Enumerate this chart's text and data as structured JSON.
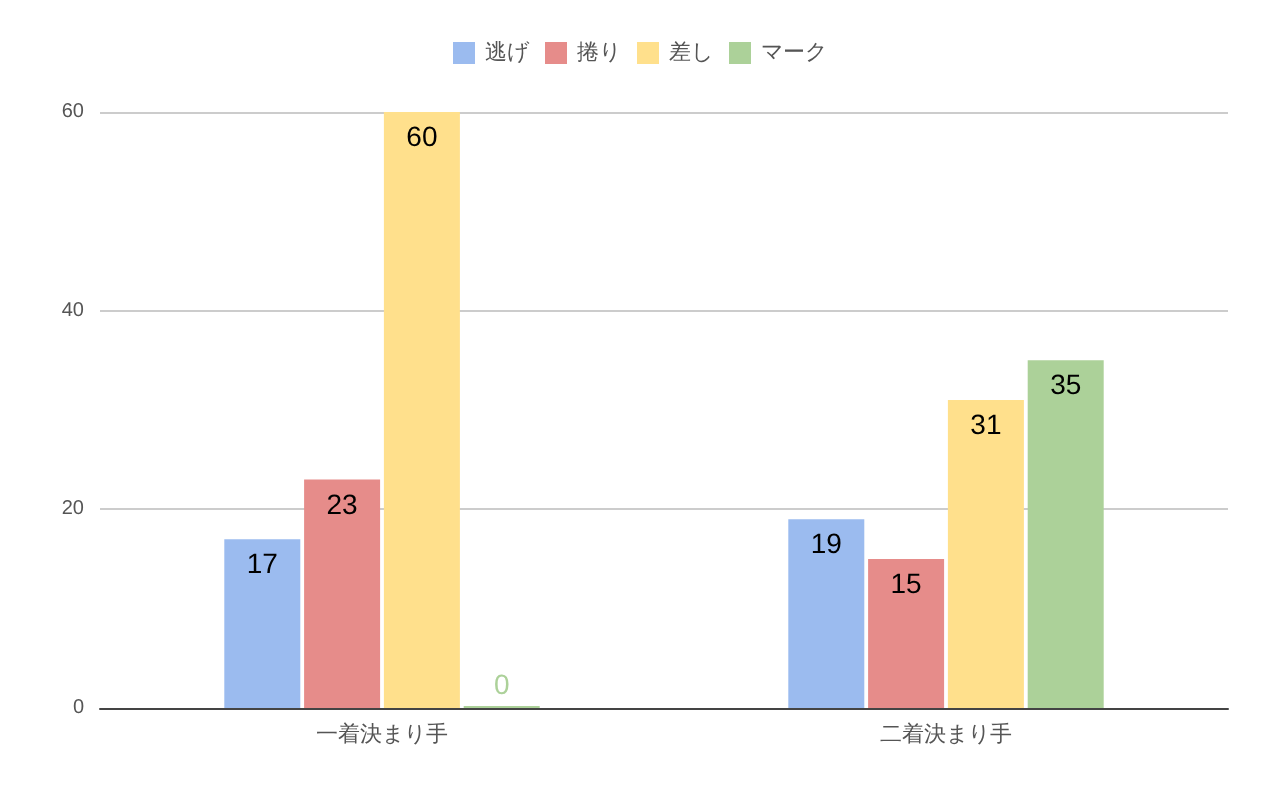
{
  "chart_data": {
    "type": "bar",
    "categories": [
      "一着決まり手",
      "二着決まり手"
    ],
    "series": [
      {
        "name": "逃げ",
        "color": "#9bbbef",
        "values": [
          17,
          19
        ]
      },
      {
        "name": "捲り",
        "color": "#e68c8a",
        "values": [
          23,
          15
        ]
      },
      {
        "name": "差し",
        "color": "#ffe08c",
        "values": [
          60,
          31
        ]
      },
      {
        "name": "マーク",
        "color": "#acd199",
        "values": [
          0,
          35
        ]
      }
    ],
    "ylim": [
      0,
      60
    ],
    "yticks": [
      0,
      20,
      40,
      60
    ],
    "grid": "y",
    "legend": "top",
    "data_labels": true
  }
}
